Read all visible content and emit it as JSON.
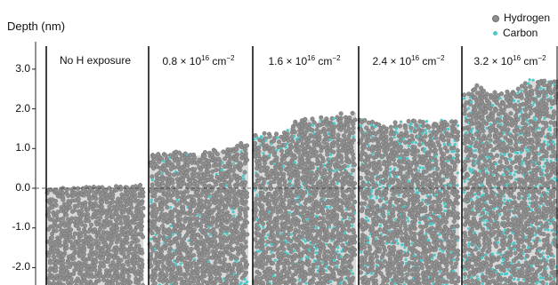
{
  "figure": {
    "y_axis": {
      "label": "Depth (nm)",
      "ticks": [
        "3.0",
        "2.0",
        "1.0",
        "0.0",
        "-1.0",
        "-2.0"
      ],
      "range_nm": [
        -2.4,
        3.4
      ],
      "reference_line_nm": 0.0
    },
    "legend": [
      {
        "label": "Hydrogen",
        "color": "#8f8f8f",
        "icon": "gray-sphere"
      },
      {
        "label": "Carbon",
        "color": "#4ec7c7",
        "icon": "cyan-dot"
      }
    ],
    "panels": [
      {
        "label": "No H exposure",
        "surface_height_nm": 0.0,
        "roughness_nm": 0.05,
        "carbon_fraction": 0.0
      },
      {
        "label_prefix": "0.8 × 10",
        "label_exp": "16",
        "label_suffix": " cm",
        "label_unit_exp": "−2",
        "surface_height_nm": 0.9,
        "roughness_nm": 0.25,
        "carbon_fraction": 0.06
      },
      {
        "label_prefix": "1.6 × 10",
        "label_exp": "16",
        "label_suffix": " cm",
        "label_unit_exp": "−2",
        "surface_height_nm": 1.35,
        "roughness_nm": 0.4,
        "carbon_fraction": 0.12
      },
      {
        "label_prefix": "2.4 × 10",
        "label_exp": "16",
        "label_suffix": " cm",
        "label_unit_exp": "−2",
        "surface_height_nm": 1.9,
        "roughness_nm": 0.35,
        "carbon_fraction": 0.17
      },
      {
        "label_prefix": "3.2 × 10",
        "label_exp": "16",
        "label_suffix": " cm",
        "label_unit_exp": "−2",
        "surface_height_nm": 2.45,
        "roughness_nm": 0.4,
        "carbon_fraction": 0.2
      }
    ]
  }
}
